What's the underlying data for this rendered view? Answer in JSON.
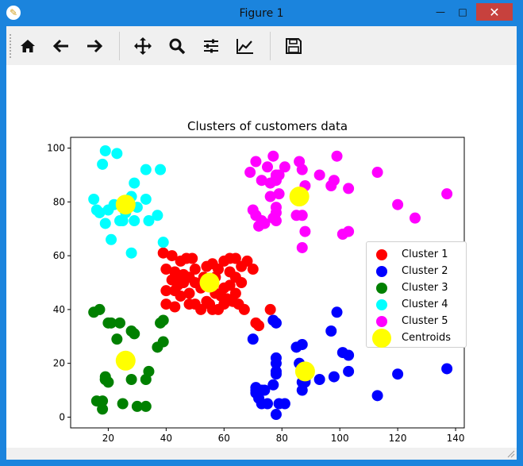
{
  "window": {
    "title": "Figure 1",
    "minimize_label": "—",
    "maximize_label": "□",
    "close_label": "✕"
  },
  "toolbar": {
    "buttons": [
      {
        "name": "home-icon",
        "tooltip": "Home"
      },
      {
        "name": "back-arrow-icon",
        "tooltip": "Back"
      },
      {
        "name": "forward-arrow-icon",
        "tooltip": "Forward"
      },
      {
        "name": "pan-icon",
        "tooltip": "Pan"
      },
      {
        "name": "zoom-icon",
        "tooltip": "Zoom"
      },
      {
        "name": "subplots-icon",
        "tooltip": "Subplots"
      },
      {
        "name": "edit-curve-icon",
        "tooltip": "Customize"
      },
      {
        "name": "save-icon",
        "tooltip": "Save"
      }
    ]
  },
  "chart_data": {
    "type": "scatter",
    "title": "Clusters of customers data",
    "xlabel": "",
    "ylabel": "",
    "xlim": [
      7,
      143
    ],
    "ylim": [
      -4,
      104
    ],
    "xticks": [
      20,
      40,
      60,
      80,
      100,
      120,
      140
    ],
    "yticks": [
      0,
      20,
      40,
      60,
      80,
      100
    ],
    "grid": false,
    "legend_position": "center-right",
    "series": [
      {
        "name": "Cluster 1",
        "color": "#ff0000",
        "points": [
          [
            39,
            61
          ],
          [
            42,
            60
          ],
          [
            43,
            54
          ],
          [
            45,
            58
          ],
          [
            47,
            59
          ],
          [
            49,
            59
          ],
          [
            40,
            55
          ],
          [
            44,
            52
          ],
          [
            46,
            50
          ],
          [
            48,
            52
          ],
          [
            50,
            50
          ],
          [
            52,
            48
          ],
          [
            54,
            56
          ],
          [
            56,
            57
          ],
          [
            58,
            55
          ],
          [
            60,
            58
          ],
          [
            62,
            59
          ],
          [
            64,
            59
          ],
          [
            66,
            56
          ],
          [
            68,
            58
          ],
          [
            40,
            47
          ],
          [
            43,
            47
          ],
          [
            45,
            45
          ],
          [
            48,
            46
          ],
          [
            50,
            42
          ],
          [
            52,
            40
          ],
          [
            55,
            42
          ],
          [
            57,
            46
          ],
          [
            59,
            45
          ],
          [
            61,
            44
          ],
          [
            63,
            43
          ],
          [
            65,
            42
          ],
          [
            67,
            40
          ],
          [
            40,
            42
          ],
          [
            43,
            41
          ],
          [
            48,
            42
          ],
          [
            54,
            43
          ],
          [
            58,
            40
          ],
          [
            60,
            48
          ],
          [
            62,
            49
          ],
          [
            64,
            52
          ],
          [
            66,
            50
          ],
          [
            50,
            55
          ],
          [
            53,
            52
          ],
          [
            57,
            52
          ],
          [
            62,
            54
          ],
          [
            46,
            53
          ],
          [
            44,
            49
          ],
          [
            42,
            51
          ],
          [
            64,
            46
          ],
          [
            70,
            55
          ],
          [
            71,
            35
          ],
          [
            72,
            34
          ],
          [
            76,
            40
          ],
          [
            60,
            42
          ],
          [
            56,
            40
          ]
        ]
      },
      {
        "name": "Cluster 2",
        "color": "#0000ff",
        "points": [
          [
            70,
            29
          ],
          [
            71,
            10
          ],
          [
            71,
            11
          ],
          [
            71,
            9
          ],
          [
            72,
            7
          ],
          [
            73,
            5
          ],
          [
            73,
            10
          ],
          [
            74,
            10
          ],
          [
            75,
            5
          ],
          [
            77,
            36
          ],
          [
            77,
            12
          ],
          [
            78,
            22
          ],
          [
            78,
            17
          ],
          [
            78,
            20
          ],
          [
            78,
            16
          ],
          [
            78,
            1
          ],
          [
            78,
            35
          ],
          [
            79,
            5
          ],
          [
            81,
            5
          ],
          [
            85,
            26
          ],
          [
            86,
            20
          ],
          [
            87,
            27
          ],
          [
            87,
            13
          ],
          [
            87,
            10
          ],
          [
            88,
            13
          ],
          [
            88,
            15
          ],
          [
            88,
            14
          ],
          [
            93,
            14
          ],
          [
            97,
            32
          ],
          [
            98,
            15
          ],
          [
            99,
            39
          ],
          [
            101,
            24
          ],
          [
            103,
            17
          ],
          [
            103,
            23
          ],
          [
            113,
            8
          ],
          [
            120,
            16
          ],
          [
            126,
            28
          ],
          [
            137,
            18
          ]
        ]
      },
      {
        "name": "Cluster 3",
        "color": "#008000",
        "points": [
          [
            15,
            39
          ],
          [
            16,
            6
          ],
          [
            17,
            40
          ],
          [
            18,
            6
          ],
          [
            18,
            3
          ],
          [
            19,
            14
          ],
          [
            19,
            15
          ],
          [
            20,
            13
          ],
          [
            20,
            35
          ],
          [
            21,
            35
          ],
          [
            23,
            29
          ],
          [
            24,
            35
          ],
          [
            25,
            5
          ],
          [
            28,
            14
          ],
          [
            28,
            32
          ],
          [
            29,
            31
          ],
          [
            30,
            4
          ],
          [
            33,
            4
          ],
          [
            33,
            14
          ],
          [
            34,
            17
          ],
          [
            37,
            26
          ],
          [
            38,
            35
          ],
          [
            39,
            36
          ],
          [
            39,
            28
          ],
          [
            19,
            14
          ]
        ]
      },
      {
        "name": "Cluster 4",
        "color": "#00ffff",
        "points": [
          [
            15,
            81
          ],
          [
            16,
            77
          ],
          [
            17,
            76
          ],
          [
            18,
            94
          ],
          [
            19,
            72
          ],
          [
            19,
            99
          ],
          [
            20,
            77
          ],
          [
            21,
            66
          ],
          [
            23,
            98
          ],
          [
            24,
            73
          ],
          [
            25,
            73
          ],
          [
            28,
            82
          ],
          [
            28,
            61
          ],
          [
            29,
            87
          ],
          [
            29,
            73
          ],
          [
            33,
            92
          ],
          [
            33,
            81
          ],
          [
            34,
            73
          ],
          [
            37,
            75
          ],
          [
            38,
            92
          ],
          [
            39,
            65
          ],
          [
            22,
            79
          ],
          [
            26,
            76
          ],
          [
            30,
            78
          ]
        ]
      },
      {
        "name": "Cluster 5",
        "color": "#ff00ff",
        "points": [
          [
            69,
            91
          ],
          [
            70,
            77
          ],
          [
            71,
            95
          ],
          [
            71,
            75
          ],
          [
            71,
            75
          ],
          [
            72,
            71
          ],
          [
            73,
            88
          ],
          [
            73,
            73
          ],
          [
            74,
            72
          ],
          [
            75,
            93
          ],
          [
            76,
            87
          ],
          [
            77,
            97
          ],
          [
            77,
            74
          ],
          [
            78,
            90
          ],
          [
            78,
            88
          ],
          [
            78,
            76
          ],
          [
            78,
            89
          ],
          [
            78,
            78
          ],
          [
            78,
            73
          ],
          [
            79,
            83
          ],
          [
            81,
            93
          ],
          [
            85,
            75
          ],
          [
            86,
            95
          ],
          [
            87,
            63
          ],
          [
            87,
            75
          ],
          [
            87,
            92
          ],
          [
            88,
            86
          ],
          [
            88,
            69
          ],
          [
            93,
            90
          ],
          [
            97,
            86
          ],
          [
            98,
            88
          ],
          [
            99,
            97
          ],
          [
            101,
            68
          ],
          [
            103,
            85
          ],
          [
            103,
            69
          ],
          [
            113,
            91
          ],
          [
            120,
            79
          ],
          [
            126,
            74
          ],
          [
            137,
            83
          ],
          [
            79,
            90
          ],
          [
            76,
            82
          ]
        ]
      },
      {
        "name": "Centroids",
        "color": "#ffff00",
        "points": [
          [
            26,
            79
          ],
          [
            55,
            50
          ],
          [
            26,
            21
          ],
          [
            86,
            82
          ],
          [
            88,
            17
          ]
        ]
      }
    ]
  }
}
